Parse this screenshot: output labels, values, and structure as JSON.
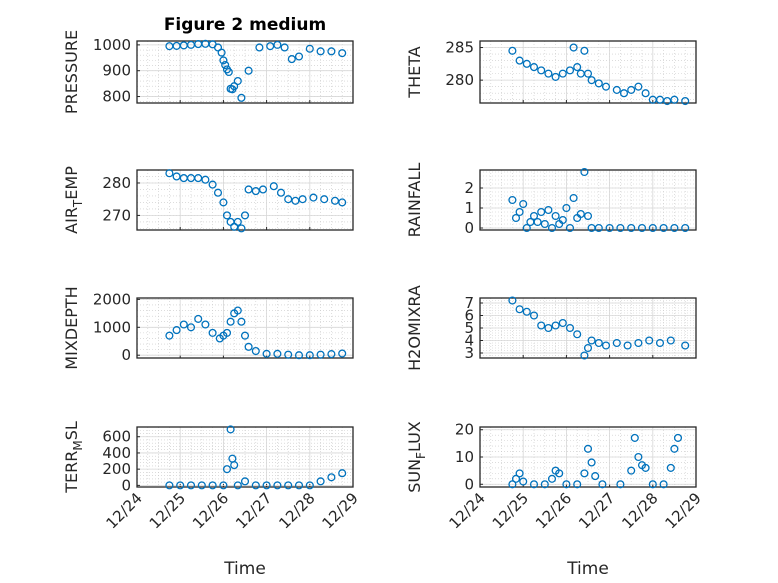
{
  "figure": {
    "title": "Figure 2 medium",
    "marker_color": "#0072BD",
    "xlabel": "Time",
    "x_range": [
      "2023-12-24",
      "2023-12-29"
    ],
    "x_ticks": [
      "2023-12-24",
      "2023-12-25",
      "2023-12-26",
      "2023-12-27",
      "2023-12-28",
      "2023-12-29"
    ],
    "x_tick_labels": [
      "12/24",
      "12/25",
      "12/26",
      "12/27",
      "12/28",
      "12/29"
    ]
  },
  "chart_data": [
    {
      "type": "scatter",
      "ylabel": "PRESSURE",
      "ylim": [
        775,
        1015
      ],
      "yticks": [
        800,
        900,
        1000
      ],
      "grid": true,
      "x": [
        "2023-12-24 18:00",
        "2023-12-24 22:00",
        "2023-12-25 02:00",
        "2023-12-25 06:00",
        "2023-12-25 10:00",
        "2023-12-25 14:00",
        "2023-12-25 18:00",
        "2023-12-25 21:00",
        "2023-12-25 23:00",
        "2023-12-26 00:00",
        "2023-12-26 01:00",
        "2023-12-26 02:00",
        "2023-12-26 03:00",
        "2023-12-26 04:00",
        "2023-12-26 05:00",
        "2023-12-26 06:00",
        "2023-12-26 08:00",
        "2023-12-26 10:00",
        "2023-12-26 14:00",
        "2023-12-26 20:00",
        "2023-12-27 02:00",
        "2023-12-27 06:00",
        "2023-12-27 10:00",
        "2023-12-27 14:00",
        "2023-12-27 18:00",
        "2023-12-28 00:00",
        "2023-12-28 06:00",
        "2023-12-28 12:00",
        "2023-12-28 18:00"
      ],
      "y": [
        995,
        996,
        998,
        1000,
        1003,
        1004,
        1002,
        990,
        970,
        940,
        922,
        905,
        895,
        830,
        828,
        840,
        860,
        795,
        900,
        990,
        995,
        1000,
        990,
        945,
        955,
        985,
        975,
        975,
        968
      ]
    },
    {
      "type": "scatter",
      "ylabel": "THETA",
      "ylim": [
        276.5,
        286
      ],
      "yticks": [
        280,
        285
      ],
      "grid": true,
      "x": [
        "2023-12-24 18:00",
        "2023-12-24 22:00",
        "2023-12-25 02:00",
        "2023-12-25 06:00",
        "2023-12-25 10:00",
        "2023-12-25 14:00",
        "2023-12-25 18:00",
        "2023-12-25 22:00",
        "2023-12-26 02:00",
        "2023-12-26 04:00",
        "2023-12-26 06:00",
        "2023-12-26 08:00",
        "2023-12-26 10:00",
        "2023-12-26 12:00",
        "2023-12-26 14:00",
        "2023-12-26 18:00",
        "2023-12-26 22:00",
        "2023-12-27 04:00",
        "2023-12-27 08:00",
        "2023-12-27 12:00",
        "2023-12-27 16:00",
        "2023-12-27 20:00",
        "2023-12-28 00:00",
        "2023-12-28 04:00",
        "2023-12-28 08:00",
        "2023-12-28 12:00",
        "2023-12-28 18:00"
      ],
      "y": [
        284.5,
        283,
        282.5,
        282,
        281.5,
        281,
        280.5,
        281,
        281.5,
        285,
        282,
        281,
        284.5,
        281,
        280,
        279.5,
        279,
        278.5,
        278,
        278.5,
        279,
        278,
        277,
        277,
        276.8,
        277,
        276.8
      ]
    },
    {
      "type": "scatter",
      "ylabel": "AIR_TEMP",
      "ylim": [
        265.5,
        284
      ],
      "yticks": [
        270,
        280
      ],
      "grid": true,
      "x": [
        "2023-12-24 18:00",
        "2023-12-24 22:00",
        "2023-12-25 02:00",
        "2023-12-25 06:00",
        "2023-12-25 10:00",
        "2023-12-25 14:00",
        "2023-12-25 18:00",
        "2023-12-25 21:00",
        "2023-12-26 00:00",
        "2023-12-26 02:00",
        "2023-12-26 04:00",
        "2023-12-26 06:00",
        "2023-12-26 08:00",
        "2023-12-26 10:00",
        "2023-12-26 12:00",
        "2023-12-26 14:00",
        "2023-12-26 18:00",
        "2023-12-26 22:00",
        "2023-12-27 04:00",
        "2023-12-27 08:00",
        "2023-12-27 12:00",
        "2023-12-27 16:00",
        "2023-12-27 20:00",
        "2023-12-28 02:00",
        "2023-12-28 08:00",
        "2023-12-28 14:00",
        "2023-12-28 18:00"
      ],
      "y": [
        283,
        282,
        281.5,
        281.5,
        281.5,
        281,
        279.5,
        277,
        274,
        270,
        268,
        266.5,
        268,
        266,
        270,
        278,
        277.5,
        278,
        279,
        277,
        275,
        274.5,
        275,
        275.5,
        275,
        274.5,
        274
      ]
    },
    {
      "type": "scatter",
      "ylabel": "RAINFALL",
      "ylim": [
        -0.1,
        2.9
      ],
      "yticks": [
        0,
        1,
        2
      ],
      "grid": true,
      "x": [
        "2023-12-24 18:00",
        "2023-12-24 20:00",
        "2023-12-24 22:00",
        "2023-12-25 00:00",
        "2023-12-25 02:00",
        "2023-12-25 04:00",
        "2023-12-25 06:00",
        "2023-12-25 08:00",
        "2023-12-25 10:00",
        "2023-12-25 12:00",
        "2023-12-25 14:00",
        "2023-12-25 16:00",
        "2023-12-25 18:00",
        "2023-12-25 20:00",
        "2023-12-25 22:00",
        "2023-12-26 00:00",
        "2023-12-26 02:00",
        "2023-12-26 04:00",
        "2023-12-26 06:00",
        "2023-12-26 08:00",
        "2023-12-26 10:00",
        "2023-12-26 12:00",
        "2023-12-26 14:00",
        "2023-12-26 18:00",
        "2023-12-27 00:00",
        "2023-12-27 06:00",
        "2023-12-27 12:00",
        "2023-12-27 18:00",
        "2023-12-28 00:00",
        "2023-12-28 06:00",
        "2023-12-28 12:00",
        "2023-12-28 18:00"
      ],
      "y": [
        1.4,
        0.5,
        0.8,
        1.2,
        0.0,
        0.3,
        0.6,
        0.3,
        0.8,
        0.2,
        0.9,
        0.0,
        0.6,
        0.2,
        0.4,
        1.0,
        0.0,
        1.5,
        0.5,
        0.7,
        2.8,
        0.6,
        0.0,
        0.0,
        0.0,
        0.0,
        0.0,
        0.0,
        0.0,
        0.0,
        0.0,
        0.0
      ]
    },
    {
      "type": "scatter",
      "ylabel": "MIXDEPTH",
      "ylim": [
        -100,
        2050
      ],
      "yticks": [
        0,
        1000,
        2000
      ],
      "grid": true,
      "x": [
        "2023-12-24 18:00",
        "2023-12-24 22:00",
        "2023-12-25 02:00",
        "2023-12-25 06:00",
        "2023-12-25 10:00",
        "2023-12-25 14:00",
        "2023-12-25 18:00",
        "2023-12-25 22:00",
        "2023-12-26 00:00",
        "2023-12-26 02:00",
        "2023-12-26 04:00",
        "2023-12-26 06:00",
        "2023-12-26 08:00",
        "2023-12-26 10:00",
        "2023-12-26 12:00",
        "2023-12-26 14:00",
        "2023-12-26 18:00",
        "2023-12-27 00:00",
        "2023-12-27 06:00",
        "2023-12-27 12:00",
        "2023-12-27 18:00",
        "2023-12-28 00:00",
        "2023-12-28 06:00",
        "2023-12-28 12:00",
        "2023-12-28 18:00"
      ],
      "y": [
        700,
        900,
        1100,
        1000,
        1300,
        1100,
        800,
        600,
        700,
        800,
        1200,
        1500,
        1600,
        1200,
        700,
        300,
        150,
        50,
        50,
        20,
        0,
        0,
        20,
        40,
        60
      ]
    },
    {
      "type": "scatter",
      "ylabel": "H2OMIXRA",
      "ylim": [
        2.6,
        7.4
      ],
      "yticks": [
        3,
        4,
        5,
        6,
        7
      ],
      "grid": true,
      "x": [
        "2023-12-24 18:00",
        "2023-12-24 22:00",
        "2023-12-25 02:00",
        "2023-12-25 06:00",
        "2023-12-25 10:00",
        "2023-12-25 14:00",
        "2023-12-25 18:00",
        "2023-12-25 22:00",
        "2023-12-26 02:00",
        "2023-12-26 06:00",
        "2023-12-26 10:00",
        "2023-12-26 12:00",
        "2023-12-26 14:00",
        "2023-12-26 18:00",
        "2023-12-26 22:00",
        "2023-12-27 04:00",
        "2023-12-27 10:00",
        "2023-12-27 16:00",
        "2023-12-27 22:00",
        "2023-12-28 04:00",
        "2023-12-28 10:00",
        "2023-12-28 18:00"
      ],
      "y": [
        7.2,
        6.5,
        6.3,
        6.0,
        5.2,
        5.0,
        5.2,
        5.4,
        5.0,
        4.5,
        2.8,
        3.4,
        4.0,
        3.8,
        3.6,
        3.8,
        3.6,
        3.8,
        4.0,
        3.8,
        4.0,
        3.6
      ]
    },
    {
      "type": "scatter",
      "ylabel": "TERR_MSL",
      "ylim": [
        -20,
        720
      ],
      "yticks": [
        0,
        200,
        400,
        600
      ],
      "grid": true,
      "x": [
        "2023-12-24 18:00",
        "2023-12-25 00:00",
        "2023-12-25 06:00",
        "2023-12-25 12:00",
        "2023-12-25 18:00",
        "2023-12-26 00:00",
        "2023-12-26 02:00",
        "2023-12-26 04:00",
        "2023-12-26 05:00",
        "2023-12-26 06:00",
        "2023-12-26 08:00",
        "2023-12-26 12:00",
        "2023-12-26 18:00",
        "2023-12-27 00:00",
        "2023-12-27 06:00",
        "2023-12-27 12:00",
        "2023-12-27 18:00",
        "2023-12-28 00:00",
        "2023-12-28 06:00",
        "2023-12-28 12:00",
        "2023-12-28 18:00"
      ],
      "y": [
        0,
        0,
        0,
        0,
        0,
        0,
        200,
        690,
        330,
        250,
        0,
        50,
        0,
        0,
        0,
        0,
        0,
        0,
        50,
        100,
        150
      ]
    },
    {
      "type": "scatter",
      "ylabel": "SUN_FLUX",
      "ylim": [
        -1,
        21
      ],
      "yticks": [
        0,
        10,
        20
      ],
      "grid": true,
      "x": [
        "2023-12-24 18:00",
        "2023-12-24 20:00",
        "2023-12-24 22:00",
        "2023-12-25 00:00",
        "2023-12-25 06:00",
        "2023-12-25 12:00",
        "2023-12-25 16:00",
        "2023-12-25 18:00",
        "2023-12-25 20:00",
        "2023-12-26 00:00",
        "2023-12-26 06:00",
        "2023-12-26 10:00",
        "2023-12-26 12:00",
        "2023-12-26 14:00",
        "2023-12-26 16:00",
        "2023-12-26 20:00",
        "2023-12-27 06:00",
        "2023-12-27 12:00",
        "2023-12-27 14:00",
        "2023-12-27 16:00",
        "2023-12-27 18:00",
        "2023-12-27 20:00",
        "2023-12-28 00:00",
        "2023-12-28 06:00",
        "2023-12-28 10:00",
        "2023-12-28 12:00",
        "2023-12-28 14:00"
      ],
      "y": [
        0,
        2,
        4,
        1,
        0,
        0,
        2,
        5,
        4,
        0,
        0,
        4,
        13,
        8,
        3,
        0,
        0,
        5,
        17,
        10,
        7,
        6,
        0,
        0,
        6,
        13,
        17
      ]
    }
  ]
}
